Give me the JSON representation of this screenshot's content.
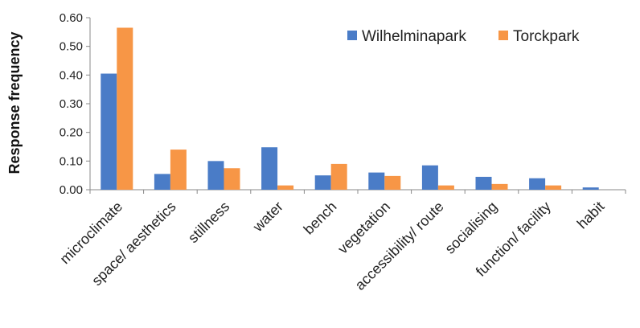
{
  "chart_data": {
    "type": "bar",
    "title": "",
    "xlabel": "",
    "ylabel": "Response frequency",
    "ylim": [
      0,
      0.6
    ],
    "yticks": [
      "0.00",
      "0.10",
      "0.20",
      "0.30",
      "0.40",
      "0.50",
      "0.60"
    ],
    "grid": false,
    "legend_position": "top-right",
    "categories": [
      "microclimate",
      "space/ aesthetics",
      "stillness",
      "water",
      "bench",
      "vegetation",
      "accessibility/ route",
      "socialising",
      "function/ facility",
      "habit"
    ],
    "series": [
      {
        "name": "Wilhelminapark",
        "color": "#4a7cc7",
        "values": [
          0.405,
          0.055,
          0.1,
          0.148,
          0.05,
          0.06,
          0.085,
          0.045,
          0.04,
          0.008
        ]
      },
      {
        "name": "Torckpark",
        "color": "#f79646",
        "values": [
          0.565,
          0.14,
          0.075,
          0.015,
          0.09,
          0.048,
          0.015,
          0.02,
          0.015,
          0.0
        ]
      }
    ]
  }
}
